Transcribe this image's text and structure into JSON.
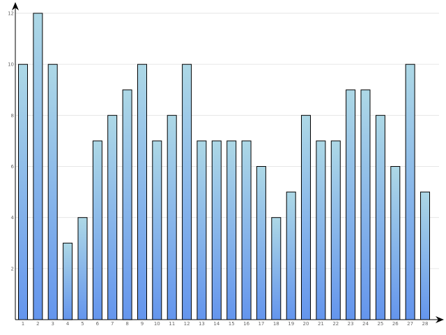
{
  "chart_data": {
    "type": "bar",
    "title": "",
    "xlabel": "",
    "ylabel": "",
    "categories": [
      "1",
      "2",
      "3",
      "4",
      "5",
      "6",
      "7",
      "8",
      "9",
      "10",
      "11",
      "12",
      "13",
      "14",
      "15",
      "16",
      "17",
      "18",
      "19",
      "20",
      "21",
      "22",
      "23",
      "24",
      "25",
      "26",
      "27",
      "28"
    ],
    "values": [
      10,
      12,
      10,
      3,
      4,
      7,
      8,
      9,
      10,
      7,
      8,
      10,
      7,
      7,
      7,
      7,
      6,
      4,
      5,
      8,
      7,
      7,
      9,
      9,
      8,
      6,
      10,
      5
    ],
    "ylim": [
      0,
      12
    ],
    "yticks": [
      "2",
      "4",
      "6",
      "8",
      "10",
      "12"
    ],
    "grid": true,
    "legend": "none",
    "colors": {
      "bar_top": "#add8e6",
      "bar_bottom": "#6495ed",
      "grid": "#e6e6e6",
      "axis": "#000000"
    }
  }
}
